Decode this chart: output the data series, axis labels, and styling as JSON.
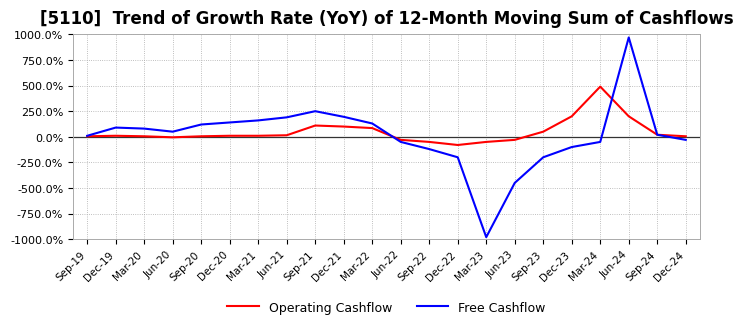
{
  "title": "[5110]  Trend of Growth Rate (YoY) of 12-Month Moving Sum of Cashflows",
  "title_fontsize": 12,
  "ylim": [
    -1000,
    1000
  ],
  "yticks": [
    -1000,
    -750,
    -500,
    -250,
    0,
    250,
    500,
    750,
    1000
  ],
  "ytick_labels": [
    "-1000.0%",
    "-750.0%",
    "-500.0%",
    "-250.0%",
    "0.0%",
    "250.0%",
    "500.0%",
    "750.0%",
    "1000.0%"
  ],
  "background_color": "#ffffff",
  "plot_bg_color": "#ffffff",
  "grid_color": "#aaaaaa",
  "operating_color": "#ff0000",
  "free_color": "#0000ff",
  "legend_labels": [
    "Operating Cashflow",
    "Free Cashflow"
  ],
  "x_labels": [
    "Sep-19",
    "Dec-19",
    "Mar-20",
    "Jun-20",
    "Sep-20",
    "Dec-20",
    "Mar-21",
    "Jun-21",
    "Sep-21",
    "Dec-21",
    "Mar-22",
    "Jun-22",
    "Sep-22",
    "Dec-22",
    "Mar-23",
    "Jun-23",
    "Sep-23",
    "Dec-23",
    "Mar-24",
    "Jun-24",
    "Sep-24",
    "Dec-24"
  ],
  "operating_cashflow": [
    5,
    10,
    5,
    -5,
    5,
    10,
    10,
    15,
    110,
    100,
    85,
    -30,
    -50,
    -80,
    -50,
    -30,
    50,
    200,
    490,
    200,
    20,
    5
  ],
  "free_cashflow": [
    10,
    90,
    80,
    50,
    120,
    140,
    160,
    190,
    250,
    195,
    130,
    -50,
    -120,
    -200,
    -980,
    -450,
    -200,
    -100,
    -50,
    970,
    20,
    -30
  ]
}
